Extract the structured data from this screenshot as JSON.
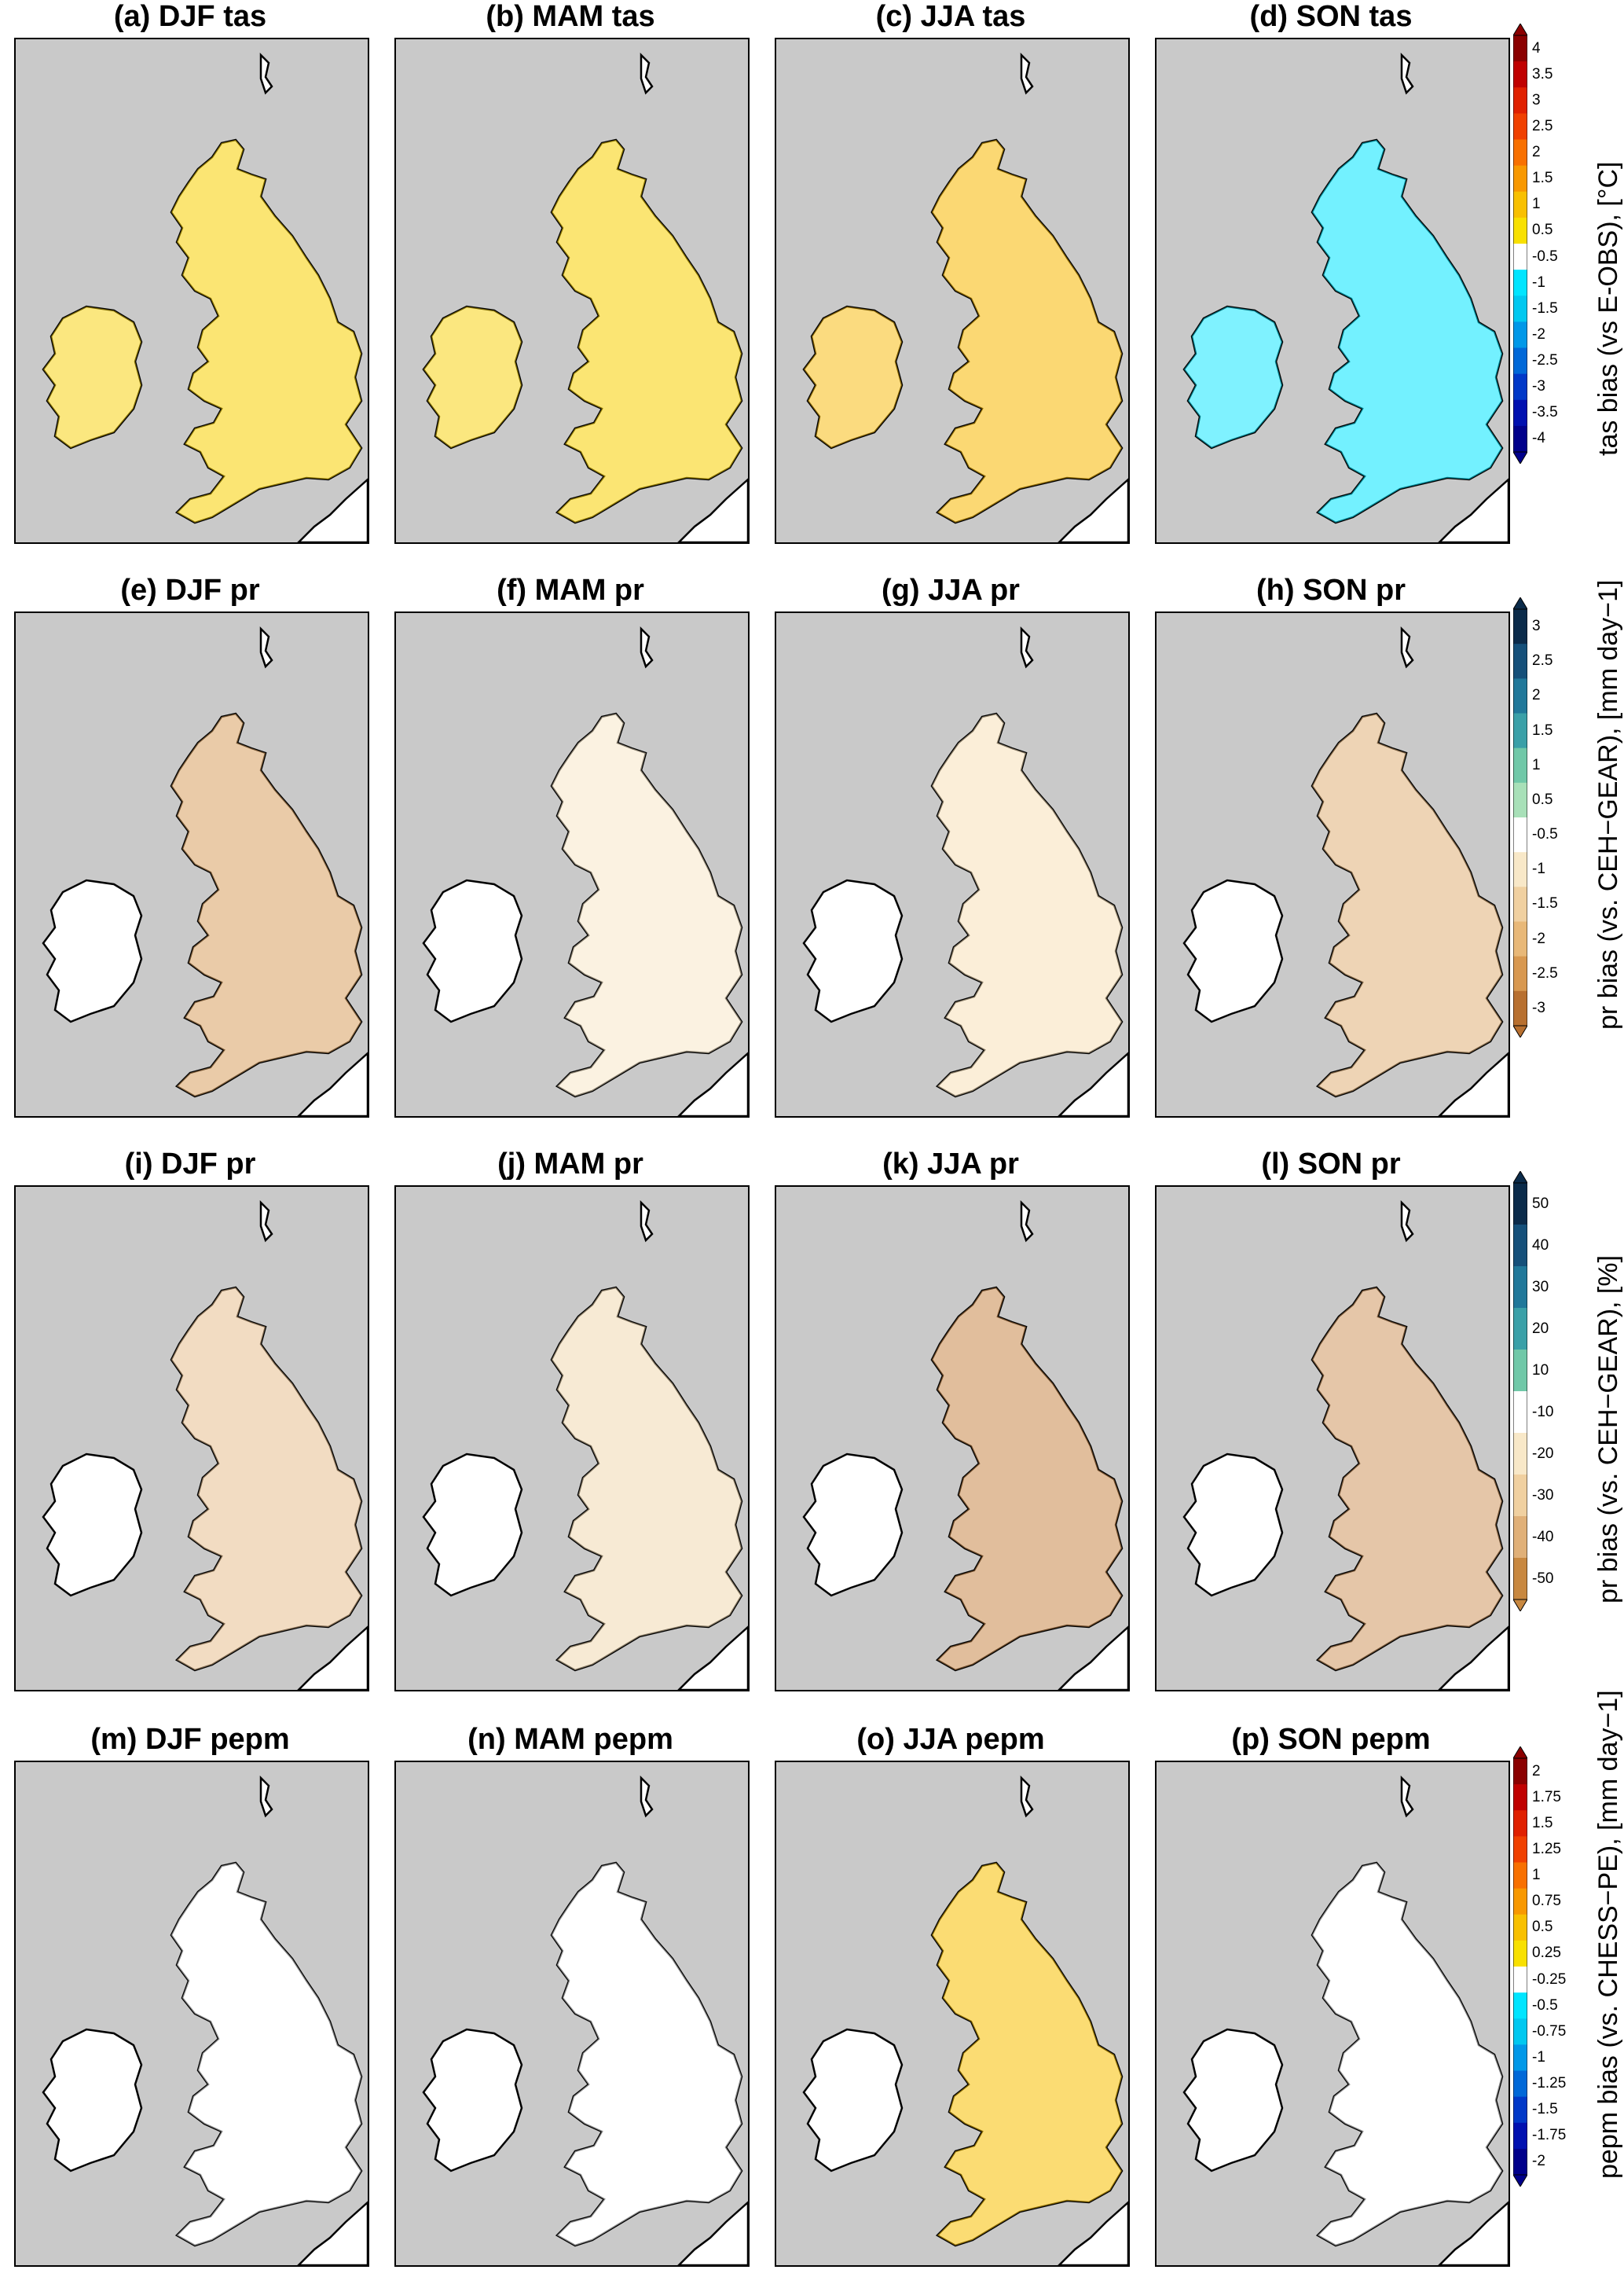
{
  "rows": [
    {
      "variable": "tas",
      "titles": [
        "(a) DJF tas",
        "(b) MAM tas",
        "(c) JJA tas",
        "(d) SON tas"
      ],
      "colorbar": {
        "label": "tas bias (vs E-OBS), [°C]",
        "ticks": [
          "4",
          "3.5",
          "3",
          "2.5",
          "2",
          "1.5",
          "1",
          "0.5",
          "-0.5",
          "-1",
          "-1.5",
          "-2",
          "-2.5",
          "-3",
          "-3.5",
          "-4"
        ],
        "colors": [
          "#8b0000",
          "#c00000",
          "#e02000",
          "#f04000",
          "#f87000",
          "#f89800",
          "#f8c000",
          "#f8e000",
          "#ffffff",
          "#00e5ff",
          "#00c8f0",
          "#0098e8",
          "#0068d8",
          "#0038c8",
          "#0010b0",
          "#00008b"
        ]
      },
      "panel_colors": [
        "#f8d000",
        "#f8d000",
        "#f8b800",
        "#00e5ff"
      ]
    },
    {
      "variable": "pr",
      "titles": [
        "(e) DJF pr",
        "(f) MAM pr",
        "(g) JJA pr",
        "(h) SON pr"
      ],
      "colorbar": {
        "label": "pr bias (vs. CEH−GEAR), [mm day−1]",
        "ticks": [
          "3",
          "2.5",
          "2",
          "1.5",
          "1",
          "0.5",
          "-0.5",
          "-1",
          "-1.5",
          "-2",
          "-2.5",
          "-3"
        ],
        "colors": [
          "#0b2b4a",
          "#15507a",
          "#20789a",
          "#3aa0a8",
          "#70c8a8",
          "#a8e0b8",
          "#ffffff",
          "#f8e8c8",
          "#f0d0a0",
          "#e8b878",
          "#d89850",
          "#b87030"
        ]
      },
      "panel_colors": [
        "#d8a060",
        "#f8e8c8",
        "#f8e0b8",
        "#e0b078"
      ]
    },
    {
      "variable": "pr_pct",
      "titles": [
        "(i) DJF pr",
        "(j) MAM pr",
        "(k) JJA pr",
        "(l) SON pr"
      ],
      "colorbar": {
        "label": "pr bias (vs. CEH−GEAR), [%]",
        "ticks": [
          "50",
          "40",
          "30",
          "20",
          "10",
          "-10",
          "-20",
          "-30",
          "-40",
          "-50"
        ],
        "colors": [
          "#0b2b4a",
          "#15507a",
          "#20789a",
          "#3aa0a8",
          "#70c8a8",
          "#ffffff",
          "#f8e8c8",
          "#f0d0a0",
          "#e0b078",
          "#c88840"
        ]
      },
      "panel_colors": [
        "#e8c090",
        "#f0d8b0",
        "#c8884a",
        "#d09860"
      ]
    },
    {
      "variable": "pepm",
      "titles": [
        "(m) DJF pepm",
        "(n) MAM pepm",
        "(o) JJA pepm",
        "(p) SON pepm"
      ],
      "colorbar": {
        "label": "pepm bias (vs. CHESS−PE), [mm day−1]",
        "ticks": [
          "2",
          "1.75",
          "1.5",
          "1.25",
          "1",
          "0.75",
          "0.5",
          "0.25",
          "-0.25",
          "-0.5",
          "-0.75",
          "-1",
          "-1.25",
          "-1.5",
          "-1.75",
          "-2"
        ],
        "colors": [
          "#8b0000",
          "#c00000",
          "#e02000",
          "#f04000",
          "#f87000",
          "#f89800",
          "#f8c000",
          "#f8e000",
          "#ffffff",
          "#00e5ff",
          "#00c8f0",
          "#0098e8",
          "#0068d8",
          "#0038c8",
          "#0010b0",
          "#00008b"
        ]
      },
      "panel_colors": [
        "#ffffff",
        "#ffffff",
        "#f8c000",
        "#ffffff"
      ]
    }
  ],
  "colors": {
    "background": "#c9c9c9",
    "land": "#ffffff",
    "coast": "#000000"
  }
}
